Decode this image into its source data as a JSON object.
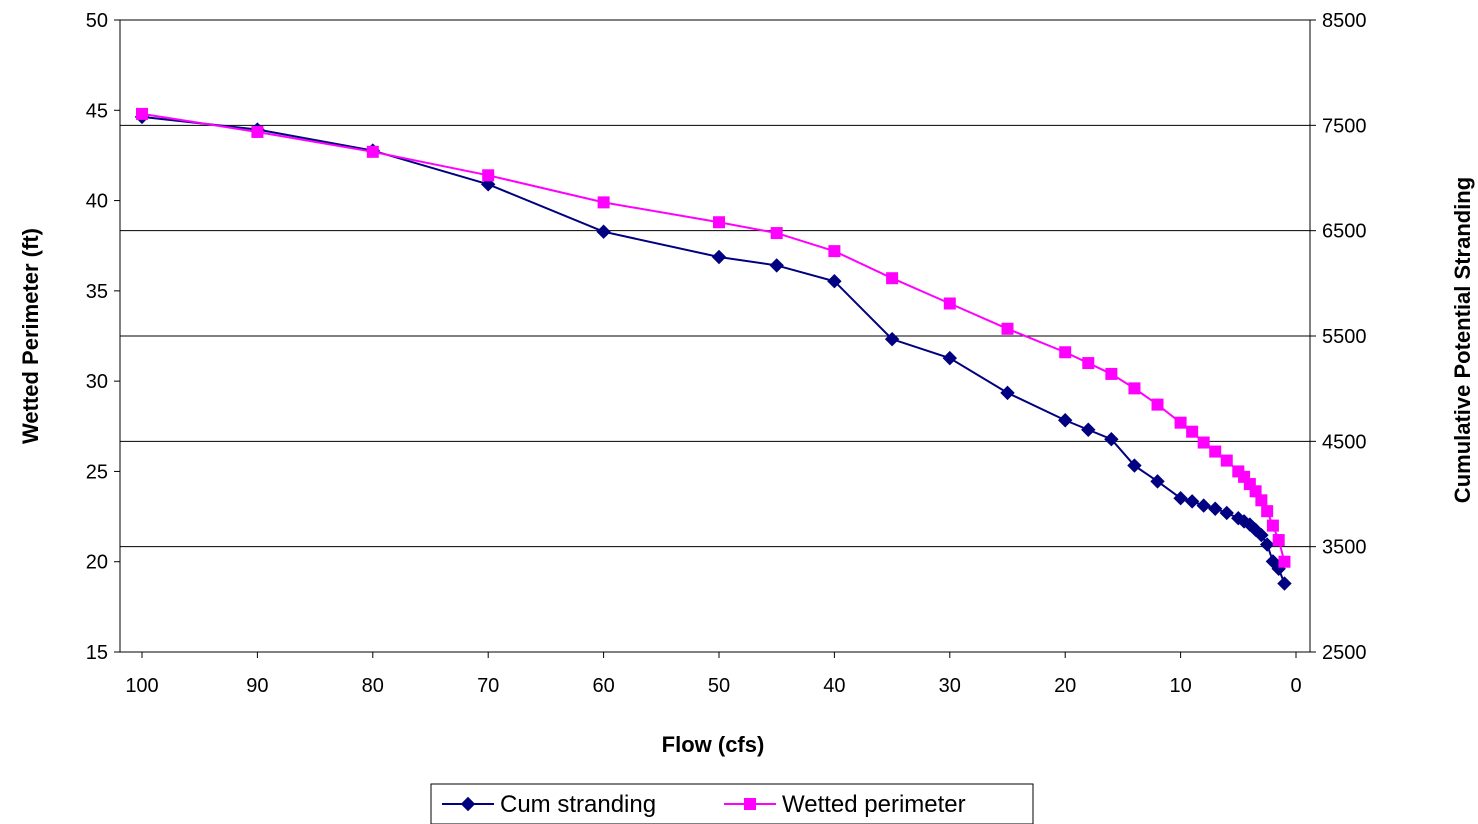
{
  "chart_data": {
    "type": "line",
    "xlabel": "Flow (cfs)",
    "ylabel_left": "Wetted Perimeter (ft)",
    "ylabel_right": "Cumulative Potential Stranding",
    "xlim": [
      100,
      0
    ],
    "x_reversed": true,
    "ylim_left": [
      15,
      50
    ],
    "ylim_right": [
      2500,
      8500
    ],
    "x_ticks": [
      100,
      90,
      80,
      70,
      60,
      50,
      40,
      30,
      20,
      10,
      0
    ],
    "y_ticks_left": [
      15,
      20,
      25,
      30,
      35,
      40,
      45,
      50
    ],
    "y_ticks_right": [
      2500,
      3500,
      4500,
      5500,
      6500,
      7500,
      8500
    ],
    "gridlines": "horizontal, right axis",
    "legend_position": "bottom",
    "series": [
      {
        "name": "Cum stranding",
        "axis": "right",
        "color": "#000080",
        "marker": "diamond",
        "x": [
          100,
          90,
          80,
          70,
          60,
          50,
          45,
          40,
          35,
          30,
          25,
          20,
          18,
          16,
          14,
          12,
          10,
          9,
          8,
          7,
          6,
          5,
          4.5,
          4,
          3.5,
          3,
          2.5,
          2,
          1.5,
          1
        ],
        "values": [
          7580,
          7460,
          7260,
          6940,
          6490,
          6250,
          6170,
          6020,
          5470,
          5290,
          4960,
          4700,
          4610,
          4520,
          4270,
          4120,
          3960,
          3930,
          3890,
          3860,
          3820,
          3770,
          3740,
          3710,
          3660,
          3610,
          3520,
          3360,
          3290,
          3150
        ]
      },
      {
        "name": "Wetted perimeter",
        "axis": "left",
        "color": "#FF00FF",
        "marker": "square",
        "x": [
          100,
          90,
          80,
          70,
          60,
          50,
          45,
          40,
          35,
          30,
          25,
          20,
          18,
          16,
          14,
          12,
          10,
          9,
          8,
          7,
          6,
          5,
          4.5,
          4,
          3.5,
          3,
          2.5,
          2,
          1.5,
          1
        ],
        "values": [
          44.8,
          43.8,
          42.7,
          41.4,
          39.9,
          38.8,
          38.2,
          37.2,
          35.7,
          34.3,
          32.9,
          31.6,
          31.0,
          30.4,
          29.6,
          28.7,
          27.7,
          27.2,
          26.6,
          26.1,
          25.6,
          25.0,
          24.7,
          24.3,
          23.9,
          23.4,
          22.8,
          22.0,
          21.2,
          20.0
        ]
      }
    ]
  }
}
